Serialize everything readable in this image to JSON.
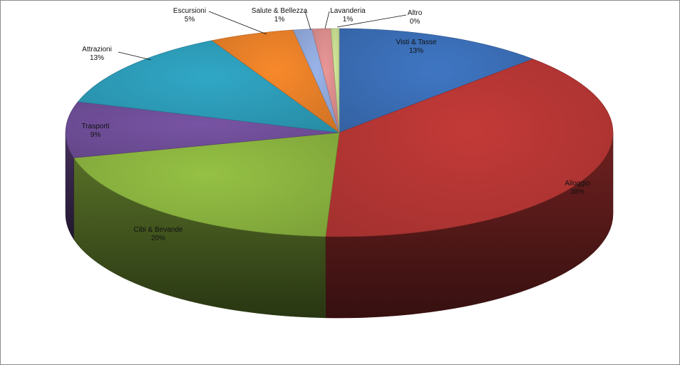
{
  "chart_data": {
    "type": "pie",
    "title": "",
    "three_d": true,
    "legend": "none",
    "slices": [
      {
        "label": "Visti & Tasse",
        "value_text": "13%",
        "value": 12.5,
        "color": "#3a6db5"
      },
      {
        "label": "Alloggio",
        "value_text": "38%",
        "value": 38.3,
        "color": "#b53634"
      },
      {
        "label": "Cibi & Bevande",
        "value_text": "20%",
        "value": 20.3,
        "color": "#8ab33f"
      },
      {
        "label": "Trasporti",
        "value_text": "9%",
        "value": 8.7,
        "color": "#6f4e98"
      },
      {
        "label": "Attrazioni",
        "value_text": "13%",
        "value": 12.5,
        "color": "#2c9bb7"
      },
      {
        "label": "Escursioni",
        "value_text": "5%",
        "value": 5.0,
        "color": "#e67f28"
      },
      {
        "label": "Salute & Bellezza",
        "value_text": "1%",
        "value": 1.1,
        "color": "#8fa7d8"
      },
      {
        "label": "Lavanderia",
        "value_text": "1%",
        "value": 1.1,
        "color": "#d98c8c"
      },
      {
        "label": "Altro",
        "value_text": "0%",
        "value": 0.5,
        "color": "#c4d88f"
      }
    ]
  }
}
